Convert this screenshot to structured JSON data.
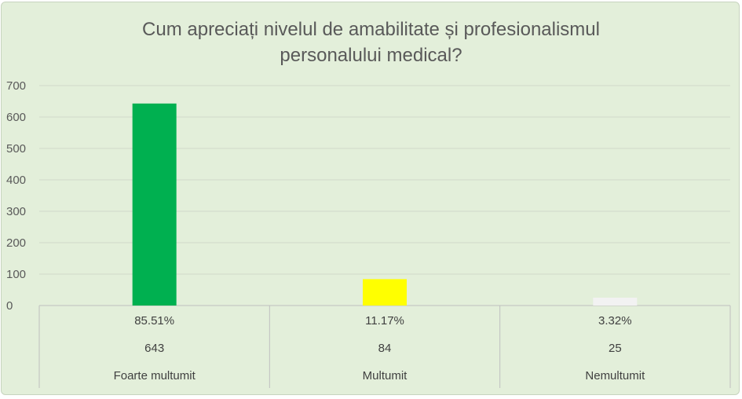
{
  "chart_data": {
    "type": "bar",
    "title": "Cum apreciați nivelul de amabilitate și profesionalismul personalului medical?",
    "title_lines": [
      "Cum apreciați nivelul de amabilitate și profesionalismul",
      "personalului medical?"
    ],
    "categories": [
      "Foarte multumit",
      "Multumit",
      "Nemultumit"
    ],
    "series": [
      {
        "values": [
          643,
          84,
          25
        ],
        "colors": [
          "#00b050",
          "#ffff00",
          "#f2f2f2"
        ]
      }
    ],
    "table_rows": [
      [
        "85.51%",
        "11.17%",
        "3.32%"
      ],
      [
        "643",
        "84",
        "25"
      ]
    ],
    "ylim": [
      0,
      700
    ],
    "yticks": [
      0,
      100,
      200,
      300,
      400,
      500,
      600,
      700
    ],
    "grid": true,
    "background": "#e3efda",
    "gridline_color": "#d0d8cb"
  }
}
